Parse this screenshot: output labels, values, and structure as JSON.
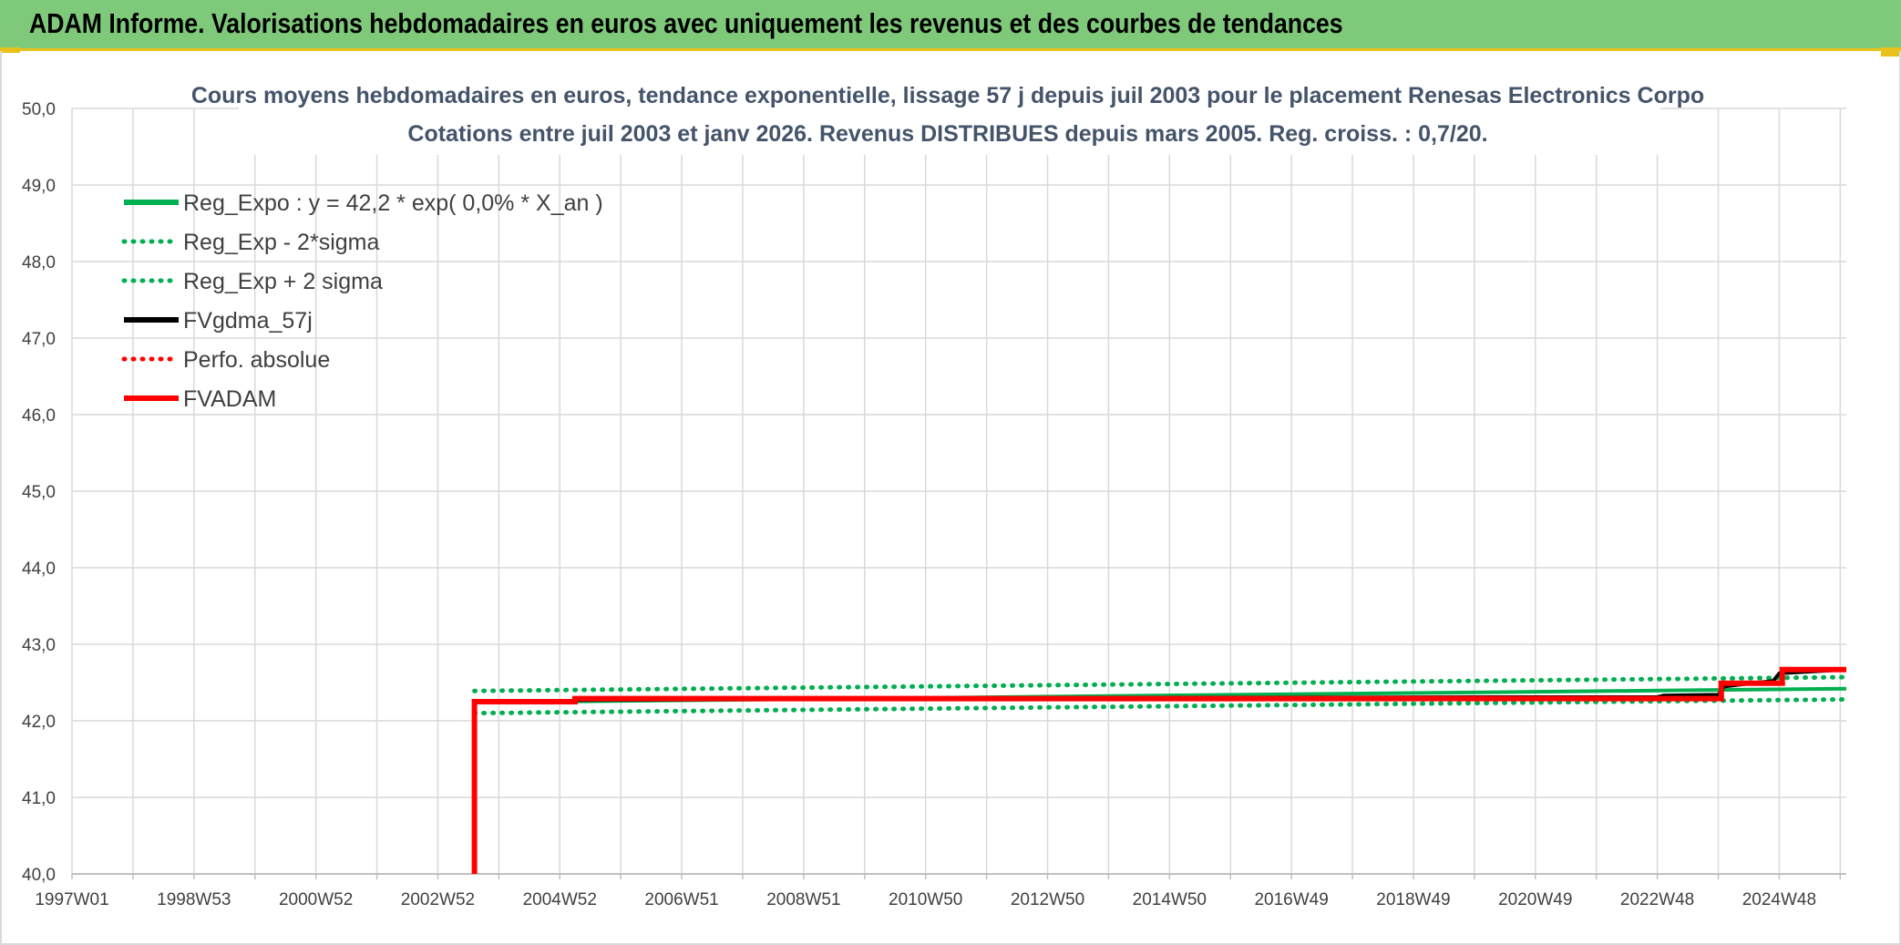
{
  "banner": {
    "title": "ADAM Informe. Valorisations hebdomadaires en euros avec uniquement les revenus et des courbes de tendances"
  },
  "chart_data": {
    "type": "line",
    "title": "Cours moyens hebdomadaires en euros, tendance exponentielle, lissage 57 j depuis juil 2003 pour le placement Renesas Electronics Corpo",
    "subtitle": "Cotations entre juil 2003 et janv 2026. Revenus DISTRIBUES depuis mars 2005. Reg. croiss. : 0,7/20.",
    "ylim": [
      40.0,
      50.0
    ],
    "y_ticks": [
      "40,0",
      "41,0",
      "42,0",
      "43,0",
      "44,0",
      "45,0",
      "46,0",
      "47,0",
      "48,0",
      "49,0",
      "50,0"
    ],
    "x_range": [
      1997.0,
      2026.1
    ],
    "x_ticks": [
      {
        "label": "1997W01",
        "x": 1997.0
      },
      {
        "label": "1998W53",
        "x": 1999.0
      },
      {
        "label": "2000W52",
        "x": 2001.0
      },
      {
        "label": "2002W52",
        "x": 2003.0
      },
      {
        "label": "2004W52",
        "x": 2005.0
      },
      {
        "label": "2006W51",
        "x": 2007.0
      },
      {
        "label": "2008W51",
        "x": 2009.0
      },
      {
        "label": "2010W50",
        "x": 2011.0
      },
      {
        "label": "2012W50",
        "x": 2013.0
      },
      {
        "label": "2014W50",
        "x": 2015.0
      },
      {
        "label": "2016W49",
        "x": 2017.0
      },
      {
        "label": "2018W49",
        "x": 2019.0
      },
      {
        "label": "2020W49",
        "x": 2021.0
      },
      {
        "label": "2022W48",
        "x": 2023.0
      },
      {
        "label": "2024W48",
        "x": 2025.0
      }
    ],
    "grid": true,
    "legend_position": "top-left",
    "series": [
      {
        "name": "Reg_Expo : y = 42,2 * exp( 0,0% *  X_an )",
        "color": "#00b050",
        "style": "solid",
        "points": [
          [
            2003.6,
            42.24
          ],
          [
            2026.1,
            42.42
          ]
        ]
      },
      {
        "name": "Reg_Exp - 2*sigma",
        "color": "#00b050",
        "style": "dotted",
        "points": [
          [
            2003.6,
            42.1
          ],
          [
            2026.1,
            42.28
          ]
        ]
      },
      {
        "name": "Reg_Exp + 2 sigma",
        "color": "#00b050",
        "style": "dotted",
        "points": [
          [
            2003.6,
            42.39
          ],
          [
            2026.1,
            42.57
          ]
        ]
      },
      {
        "name": "FVgdma_57j",
        "color": "#000000",
        "style": "solid",
        "points": [
          [
            2003.6,
            42.25
          ],
          [
            2005.2,
            42.25
          ],
          [
            2005.3,
            42.27
          ],
          [
            2010,
            42.29
          ],
          [
            2015,
            42.3
          ],
          [
            2020,
            42.31
          ],
          [
            2023.0,
            42.31
          ],
          [
            2023.1,
            42.33
          ],
          [
            2024.0,
            42.34
          ],
          [
            2024.1,
            42.45
          ],
          [
            2024.9,
            42.52
          ],
          [
            2025.0,
            42.62
          ],
          [
            2026.1,
            42.67
          ]
        ]
      },
      {
        "name": "Perfo. absolue",
        "color": "#ff0000",
        "style": "dotted",
        "points": []
      },
      {
        "name": "FVADAM",
        "color": "#ff0000",
        "style": "solid",
        "points": [
          [
            2003.6,
            40.0
          ],
          [
            2003.6,
            42.25
          ],
          [
            2005.25,
            42.25
          ],
          [
            2005.25,
            42.29
          ],
          [
            2024.05,
            42.29
          ],
          [
            2024.05,
            42.49
          ],
          [
            2025.05,
            42.49
          ],
          [
            2025.05,
            42.67
          ],
          [
            2026.1,
            42.67
          ]
        ]
      }
    ]
  }
}
